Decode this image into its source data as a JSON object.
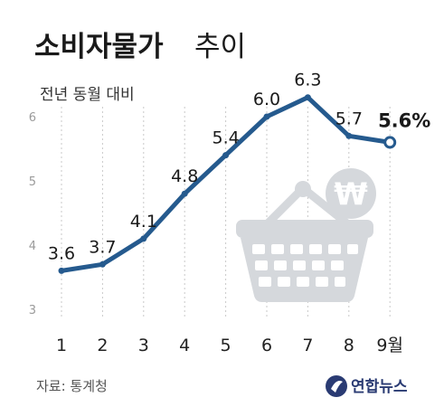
{
  "header": {
    "title_bold": "소비자물가",
    "title_regular": "추이",
    "subtitle": "전년 동월 대비"
  },
  "chart_data": {
    "type": "line",
    "categories": [
      "1",
      "2",
      "3",
      "4",
      "5",
      "6",
      "7",
      "8",
      "9월"
    ],
    "values": [
      3.6,
      3.7,
      4.1,
      4.8,
      5.4,
      6.0,
      6.3,
      5.7,
      5.6
    ],
    "data_labels": [
      "3.6",
      "3.7",
      "4.1",
      "4.8",
      "5.4",
      "6.0",
      "6.3",
      "5.7",
      "5.6%"
    ],
    "yticks": [
      "3",
      "4",
      "5",
      "6"
    ],
    "ylim": [
      3,
      6.3
    ],
    "grid": "vertical dashed",
    "line_color": "#255a8e",
    "last_point_marker": "hollow circle"
  },
  "illustration": {
    "icon": "shopping-basket-icon",
    "currency_symbol": "₩",
    "color": "#d5d8dc"
  },
  "footer": {
    "source": "자료: 통계청",
    "logo_text": "연합뉴스",
    "logo_color": "#2a3b73"
  }
}
